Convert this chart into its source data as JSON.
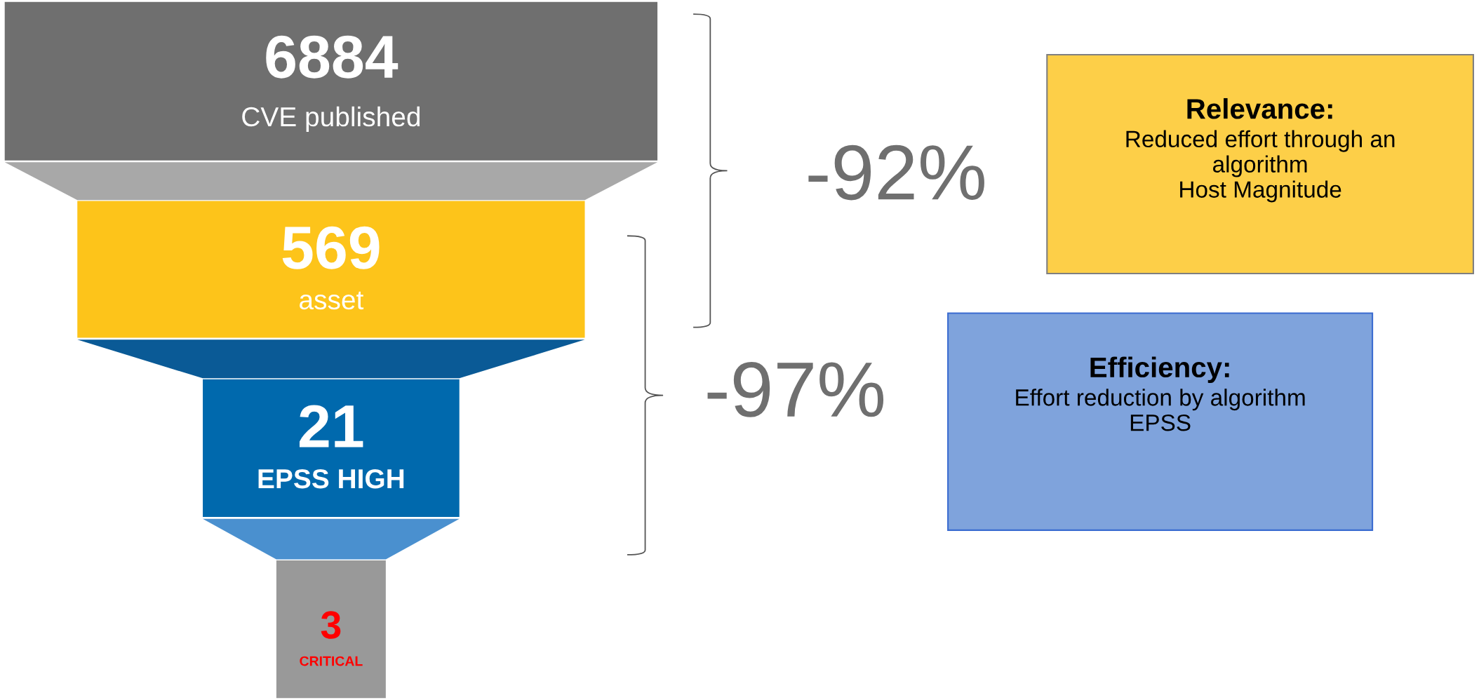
{
  "chart_data": {
    "type": "other",
    "categories": [
      "CVE published",
      "asset",
      "EPSS HIGH",
      "CRITICAL"
    ],
    "values": [
      6884,
      569,
      21,
      3
    ],
    "data_labels": true,
    "colors": [
      "#6f6f6f",
      "#fdc41a",
      "#0069ad",
      "#999999"
    ],
    "annotations": [
      "-92%",
      "-97%",
      "Relevance:",
      "Reduced effort through an\nalgorithm\nHost Magnitude",
      "Efficiency:",
      "Effort reduction by algorithm\nEPSS"
    ]
  }
}
